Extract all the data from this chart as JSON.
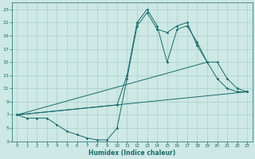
{
  "xlabel": "Humidex (Indice chaleur)",
  "background_color": "#cde8e5",
  "grid_color": "#aacfcc",
  "line_color": "#1a6b6b",
  "xlim": [
    -0.5,
    23.5
  ],
  "ylim": [
    3,
    24
  ],
  "xticks": [
    0,
    1,
    2,
    3,
    4,
    5,
    6,
    7,
    8,
    9,
    10,
    11,
    12,
    13,
    14,
    15,
    16,
    17,
    18,
    19,
    20,
    21,
    22,
    23
  ],
  "yticks": [
    3,
    5,
    7,
    9,
    11,
    13,
    15,
    17,
    19,
    21,
    23
  ],
  "curve1_x": [
    0,
    1,
    2,
    3,
    4,
    5,
    6,
    7,
    8,
    9,
    10,
    11,
    12,
    13,
    14,
    15,
    16,
    17,
    18,
    19,
    20,
    21,
    22,
    23
  ],
  "curve1_y": [
    7,
    6.5,
    6.5,
    6.5,
    5.5,
    4.5,
    4.0,
    3.5,
    3.2,
    3.2,
    5.0,
    12.5,
    20.5,
    22.5,
    20.0,
    19.5,
    20.5,
    21.0,
    17.5,
    15.0,
    12.5,
    11.0,
    10.5,
    10.5
  ],
  "curve2_x": [
    0,
    10,
    11,
    12,
    13,
    14,
    15,
    16,
    17,
    18,
    19,
    20,
    21,
    22,
    23
  ],
  "curve2_y": [
    7,
    8.5,
    13.0,
    21.0,
    23.0,
    20.5,
    15.0,
    20.0,
    20.5,
    18.0,
    15.0,
    15.0,
    12.5,
    11.0,
    10.5
  ],
  "line1_x": [
    0,
    23
  ],
  "line1_y": [
    7,
    10.5
  ],
  "line2_x": [
    0,
    19
  ],
  "line2_y": [
    7,
    15.0
  ]
}
